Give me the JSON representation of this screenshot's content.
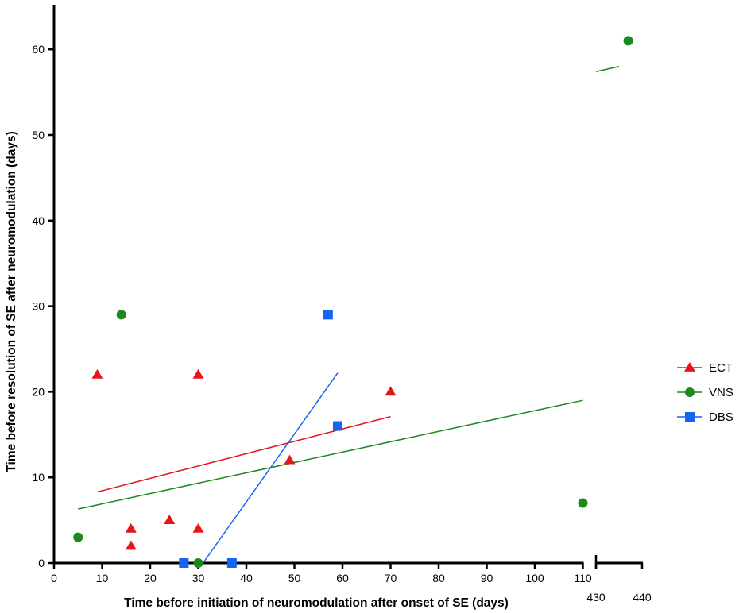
{
  "chart_data": {
    "type": "scatter",
    "title": "",
    "xlabel": "Time before initiation of neuromodulation after onset of SE (days)",
    "ylabel": "Time before resolution of SE after neuromodulation (days)",
    "x_break": {
      "segment1": [
        0,
        110
      ],
      "segment2": [
        430,
        440
      ]
    },
    "xticks_segment1": [
      0,
      10,
      20,
      30,
      40,
      50,
      60,
      70,
      80,
      90,
      100,
      110
    ],
    "xticks_segment2": [
      430,
      440
    ],
    "yticks": [
      0,
      10,
      20,
      30,
      40,
      50,
      60
    ],
    "ylim": [
      0,
      65
    ],
    "grid": false,
    "legend_position": "right",
    "series": [
      {
        "name": "ECT",
        "marker": "triangle",
        "color": "#e8141b",
        "points": [
          [
            9,
            22
          ],
          [
            16,
            4
          ],
          [
            16,
            2
          ],
          [
            24,
            5
          ],
          [
            30,
            22
          ],
          [
            30,
            4
          ],
          [
            49,
            12
          ],
          [
            70,
            20
          ]
        ],
        "fit": [
          [
            9,
            8.3
          ],
          [
            70,
            17.1
          ]
        ]
      },
      {
        "name": "VNS",
        "marker": "circle",
        "color": "#1a8a1a",
        "points": [
          [
            5,
            3
          ],
          [
            14,
            29
          ],
          [
            30,
            0
          ],
          [
            110,
            7
          ],
          [
            437,
            61
          ]
        ],
        "fit": [
          [
            5,
            6.3
          ],
          [
            110,
            19.0
          ]
        ],
        "fit2": [
          [
            430,
            57.4
          ],
          [
            435,
            58.0
          ]
        ]
      },
      {
        "name": "DBS",
        "marker": "square",
        "color": "#1565f5",
        "points": [
          [
            27,
            0
          ],
          [
            37,
            0
          ],
          [
            57,
            29
          ],
          [
            59,
            16
          ]
        ],
        "fit": [
          [
            31,
            0
          ],
          [
            59,
            22.2
          ]
        ]
      }
    ]
  }
}
